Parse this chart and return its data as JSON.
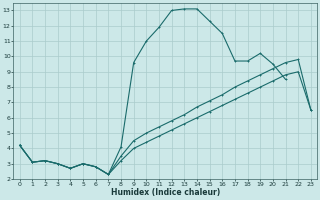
{
  "xlabel": "Humidex (Indice chaleur)",
  "xlim": [
    -0.5,
    23.5
  ],
  "ylim": [
    2,
    13.5
  ],
  "xticks": [
    0,
    1,
    2,
    3,
    4,
    5,
    6,
    7,
    8,
    9,
    10,
    11,
    12,
    13,
    14,
    15,
    16,
    17,
    18,
    19,
    20,
    21,
    22,
    23
  ],
  "yticks": [
    2,
    3,
    4,
    5,
    6,
    7,
    8,
    9,
    10,
    11,
    12,
    13
  ],
  "bg_color": "#cce8e8",
  "grid_color": "#aacccc",
  "line_color": "#1a6b6b",
  "line1_x": [
    0,
    1,
    2,
    3,
    4,
    5,
    6,
    7,
    8,
    9,
    10,
    11,
    12,
    13,
    14,
    15,
    16,
    17,
    18,
    19,
    20,
    21
  ],
  "line1_y": [
    4.2,
    3.1,
    3.2,
    3.0,
    2.7,
    3.0,
    2.8,
    2.3,
    4.1,
    9.6,
    11.0,
    11.9,
    13.0,
    13.1,
    13.1,
    12.3,
    11.5,
    9.7,
    9.7,
    10.2,
    9.5,
    8.5
  ],
  "line2_x": [
    0,
    1,
    2,
    3,
    4,
    5,
    6,
    7,
    8,
    9,
    10,
    11,
    12,
    13,
    14,
    15,
    16,
    17,
    18,
    19,
    20,
    21,
    22,
    23
  ],
  "line2_y": [
    4.2,
    3.1,
    3.2,
    3.0,
    2.7,
    3.0,
    2.8,
    2.3,
    3.5,
    4.5,
    5.0,
    5.4,
    5.8,
    6.2,
    6.7,
    7.1,
    7.5,
    8.0,
    8.4,
    8.8,
    9.2,
    9.6,
    9.8,
    6.5
  ],
  "line3_x": [
    0,
    1,
    2,
    3,
    4,
    5,
    6,
    7,
    8,
    9,
    10,
    11,
    12,
    13,
    14,
    15,
    16,
    17,
    18,
    19,
    20,
    21,
    22,
    23
  ],
  "line3_y": [
    4.2,
    3.1,
    3.2,
    3.0,
    2.7,
    3.0,
    2.8,
    2.3,
    3.2,
    4.0,
    4.4,
    4.8,
    5.2,
    5.6,
    6.0,
    6.4,
    6.8,
    7.2,
    7.6,
    8.0,
    8.4,
    8.8,
    9.0,
    6.5
  ]
}
